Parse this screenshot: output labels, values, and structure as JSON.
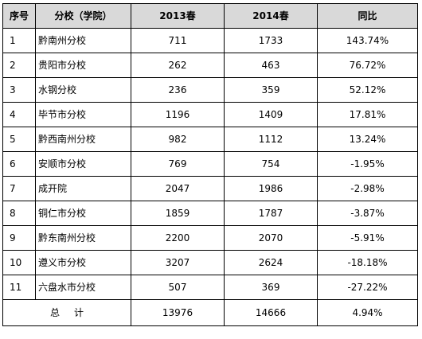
{
  "table": {
    "headers": {
      "index": "序号",
      "branch": "分校（学院）",
      "y2013": "2013春",
      "y2014": "2014春",
      "change": "同比"
    },
    "rows": [
      {
        "index": "1",
        "branch": "黔南州分校",
        "y2013": "711",
        "y2014": "1733",
        "change": "143.74%"
      },
      {
        "index": "2",
        "branch": "贵阳市分校",
        "y2013": "262",
        "y2014": "463",
        "change": "76.72%"
      },
      {
        "index": "3",
        "branch": "水钢分校",
        "y2013": "236",
        "y2014": "359",
        "change": "52.12%"
      },
      {
        "index": "4",
        "branch": "毕节市分校",
        "y2013": "1196",
        "y2014": "1409",
        "change": "17.81%"
      },
      {
        "index": "5",
        "branch": "黔西南州分校",
        "y2013": "982",
        "y2014": "1112",
        "change": "13.24%"
      },
      {
        "index": "6",
        "branch": "安顺市分校",
        "y2013": "769",
        "y2014": "754",
        "change": "-1.95%"
      },
      {
        "index": "7",
        "branch": "成开院",
        "y2013": "2047",
        "y2014": "1986",
        "change": "-2.98%"
      },
      {
        "index": "8",
        "branch": "铜仁市分校",
        "y2013": "1859",
        "y2014": "1787",
        "change": "-3.87%"
      },
      {
        "index": "9",
        "branch": "黔东南州分校",
        "y2013": "2200",
        "y2014": "2070",
        "change": "-5.91%"
      },
      {
        "index": "10",
        "branch": "遵义市分校",
        "y2013": "3207",
        "y2014": "2624",
        "change": "-18.18%"
      },
      {
        "index": "11",
        "branch": "六盘水市分校",
        "y2013": "507",
        "y2014": "369",
        "change": "-27.22%"
      }
    ],
    "total": {
      "label_a": "总",
      "label_b": "计",
      "y2013": "13976",
      "y2014": "14666",
      "change": "4.94%"
    }
  }
}
